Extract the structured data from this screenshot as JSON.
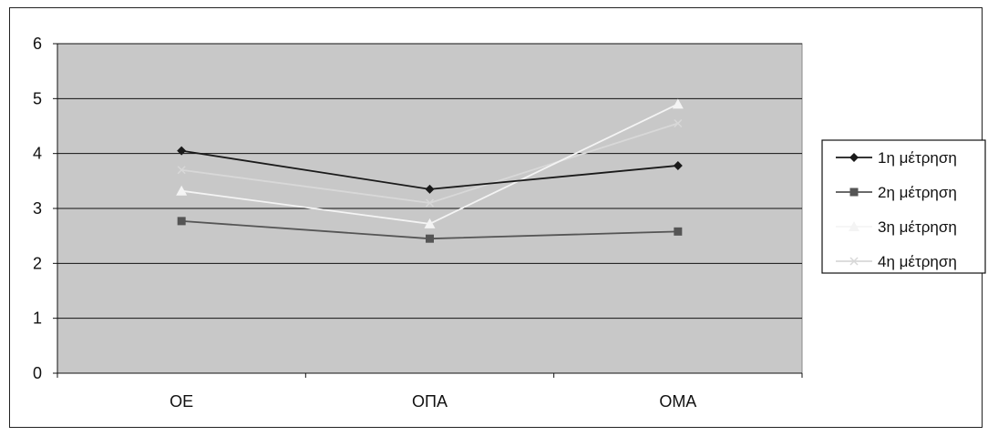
{
  "chart_data": {
    "type": "line",
    "title": "",
    "xlabel": "",
    "ylabel": "",
    "categories": [
      "ΟΕ",
      "ΟΠΑ",
      "ΟΜΑ"
    ],
    "ylim": [
      0,
      6
    ],
    "yticks": [
      "0",
      "1",
      "2",
      "3",
      "4",
      "5",
      "6"
    ],
    "grid": true,
    "legend_position": "right",
    "series": [
      {
        "name": "1η μέτρηση",
        "values": [
          4.05,
          3.35,
          3.78
        ],
        "color": "#1a1a1a",
        "marker": "diamond"
      },
      {
        "name": "2η μέτρηση",
        "values": [
          2.77,
          2.45,
          2.58
        ],
        "color": "#555555",
        "marker": "square"
      },
      {
        "name": "3η μέτρηση",
        "values": [
          3.32,
          2.72,
          4.9
        ],
        "color": "#f4f4f4",
        "marker": "triangle"
      },
      {
        "name": "4η μέτρηση",
        "values": [
          3.7,
          3.1,
          4.55
        ],
        "color": "#d8d8d8",
        "marker": "x"
      }
    ],
    "plot_background": "#c8c8c8"
  }
}
